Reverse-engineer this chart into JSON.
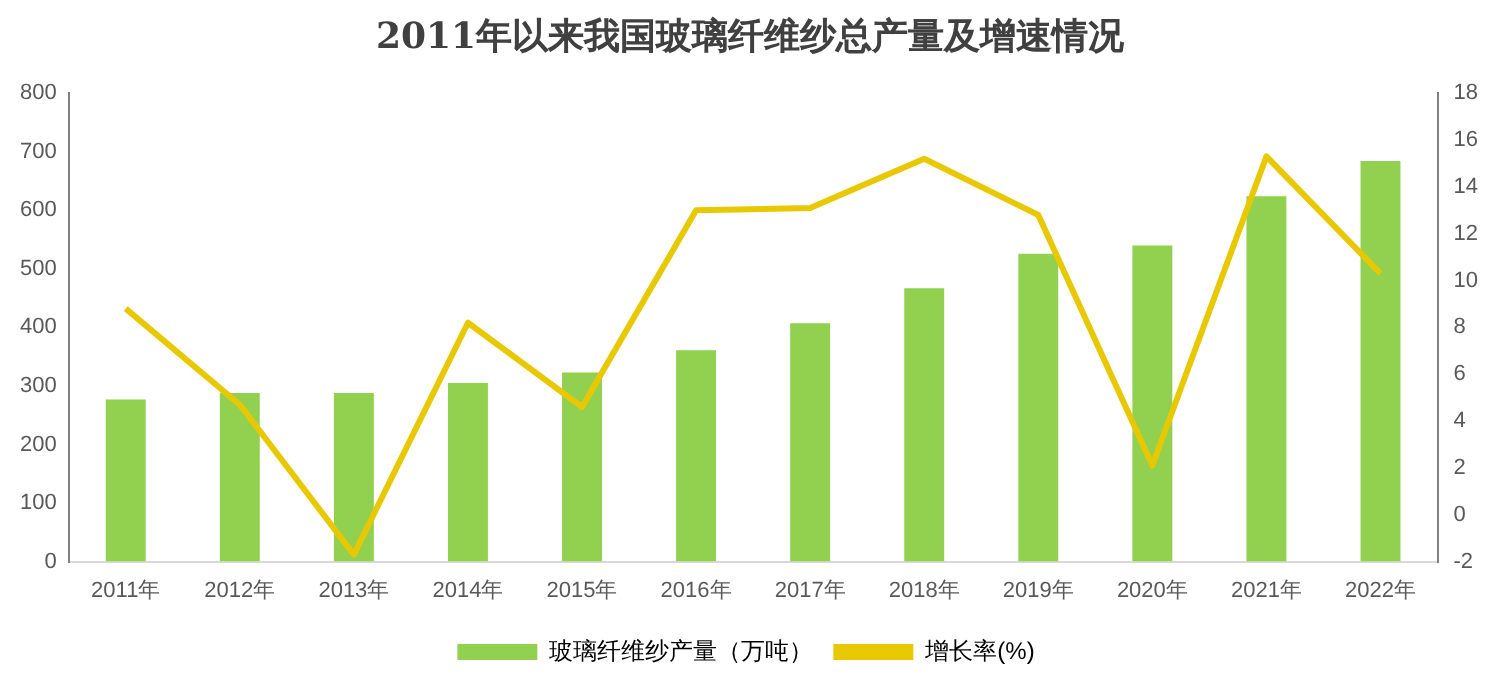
{
  "chart_data": {
    "type": "bar",
    "title": "2011年以来我国玻璃纤维纱总产量及增速情况",
    "categories": [
      "2011年",
      "2012年",
      "2013年",
      "2014年",
      "2015年",
      "2016年",
      "2017年",
      "2018年",
      "2019年",
      "2020年",
      "2021年",
      "2022年"
    ],
    "series": [
      {
        "name": "玻璃纤维纱产量（万吨）",
        "color": "#92d050",
        "values": [
          277,
          288,
          288,
          305,
          323,
          361,
          407,
          467,
          526,
          540,
          624,
          684
        ]
      },
      {
        "name": "增长率(%)",
        "type": "line",
        "axis": "y2",
        "color": "#e8c800",
        "values": [
          8.8,
          4.7,
          -1.7,
          8.2,
          4.6,
          13.0,
          13.1,
          15.2,
          12.8,
          2.1,
          15.3,
          10.3
        ]
      }
    ],
    "ylim": [
      0,
      800
    ],
    "yticks": [
      0,
      100,
      200,
      300,
      400,
      500,
      600,
      700,
      800
    ],
    "y2lim": [
      -2,
      18
    ],
    "y2ticks": [
      -2,
      0,
      2,
      4,
      6,
      8,
      10,
      12,
      14,
      16,
      18
    ],
    "grid": false,
    "legend": "bottom",
    "marker": "none",
    "line_style": "solid"
  }
}
